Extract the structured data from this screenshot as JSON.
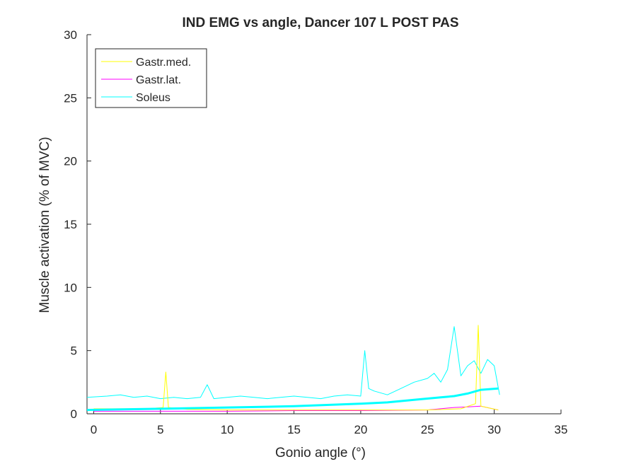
{
  "chart_data": {
    "type": "line",
    "title": "IND EMG vs angle, Dancer 107 L POST PAS",
    "xlabel": "Gonio angle (°)",
    "ylabel": "Muscle activation (% of MVC)",
    "xlim": [
      -0.5,
      35
    ],
    "ylim": [
      0,
      30
    ],
    "xticks": [
      "0",
      "5",
      "10",
      "15",
      "20",
      "25",
      "30",
      "35"
    ],
    "yticks": [
      "0",
      "5",
      "10",
      "15",
      "20",
      "25",
      "30"
    ],
    "grid": false,
    "legend": {
      "position": "top-left",
      "entries": [
        "Gastr.med.",
        "Gastr.lat.",
        "Soleus"
      ]
    },
    "colors": {
      "gastr_med": "#ffff00",
      "gastr_lat": "#ff00ff",
      "soleus": "#00ffff",
      "axis": "#262626"
    },
    "series": [
      {
        "name": "Gastr.med.",
        "x": [
          0,
          2,
          4,
          5.2,
          5.4,
          5.6,
          7,
          10,
          15,
          20,
          25,
          27.5,
          28.6,
          28.8,
          29,
          30.3
        ],
        "y": [
          0.4,
          0.4,
          0.4,
          0.5,
          3.3,
          0.5,
          0.35,
          0.3,
          0.3,
          0.3,
          0.3,
          0.4,
          0.8,
          7.0,
          0.6,
          0.3
        ]
      },
      {
        "name": "Gastr.lat.",
        "x": [
          0,
          5,
          10,
          15,
          20,
          25,
          27,
          28,
          29,
          30.3
        ],
        "y": [
          0.2,
          0.2,
          0.2,
          0.25,
          0.25,
          0.3,
          0.5,
          0.55,
          0.6,
          0.3
        ]
      },
      {
        "name": "Soleus",
        "x": [
          -0.5,
          1,
          2,
          3,
          4,
          5,
          6,
          7,
          8,
          8.5,
          9,
          10,
          11,
          12,
          13,
          14,
          15,
          16,
          17,
          18,
          19,
          20,
          20.3,
          20.6,
          21,
          22,
          23,
          24,
          25,
          25.5,
          26,
          26.5,
          27,
          27.5,
          28,
          28.5,
          29,
          29.5,
          30,
          30.4
        ],
        "y": [
          1.3,
          1.4,
          1.5,
          1.3,
          1.4,
          1.2,
          1.3,
          1.2,
          1.3,
          2.3,
          1.2,
          1.3,
          1.4,
          1.3,
          1.2,
          1.3,
          1.4,
          1.3,
          1.2,
          1.4,
          1.5,
          1.4,
          5.0,
          2.0,
          1.8,
          1.5,
          2.0,
          2.5,
          2.8,
          3.2,
          2.5,
          3.5,
          6.9,
          3.0,
          3.8,
          4.2,
          3.2,
          4.3,
          3.8,
          1.5
        ]
      },
      {
        "name": "",
        "x": [
          -0.5,
          5,
          10,
          15,
          20,
          22,
          24,
          26,
          27,
          28,
          29,
          30.3
        ],
        "y": [
          0.3,
          0.4,
          0.5,
          0.6,
          0.8,
          0.9,
          1.1,
          1.3,
          1.4,
          1.6,
          1.9,
          2.0
        ]
      }
    ]
  }
}
